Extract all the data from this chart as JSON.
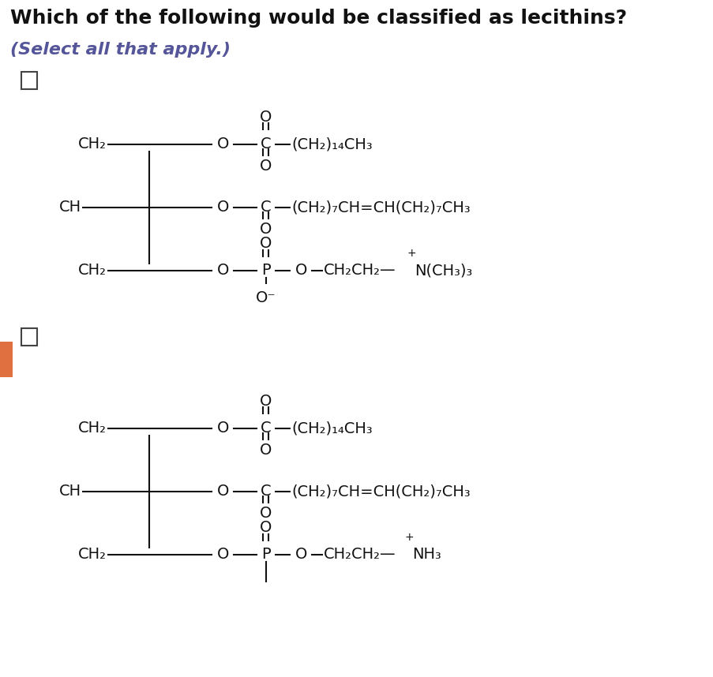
{
  "title": "Which of the following would be classified as lecithins?",
  "subtitle": "(Select all that apply.)",
  "bg_color": "#ffffff",
  "title_fontsize": 18,
  "subtitle_fontsize": 16,
  "chem_fontsize": 14,
  "checkbox_color": "#444444",
  "text_color": "#111111",
  "line_color": "#111111",
  "molecule1": {
    "lines": [
      "CH₂—O—C—(CH₂)₁₄CH₃",
      "CH—O—C—(CH₂)₇CH=CH(CH₂)₇CH₃",
      "CH₂—O—P—O—CH₂CH₂—N(CH₃)₃"
    ]
  },
  "molecule2": {
    "lines": [
      "CH₂—O—C—(CH₂)₁₄CH₃",
      "CH—O—C—(CH₂)₇CH=CH(CH₂)₇CH₃",
      "CH₂—O—P—O—CH₂CH₂—NH₃"
    ]
  }
}
